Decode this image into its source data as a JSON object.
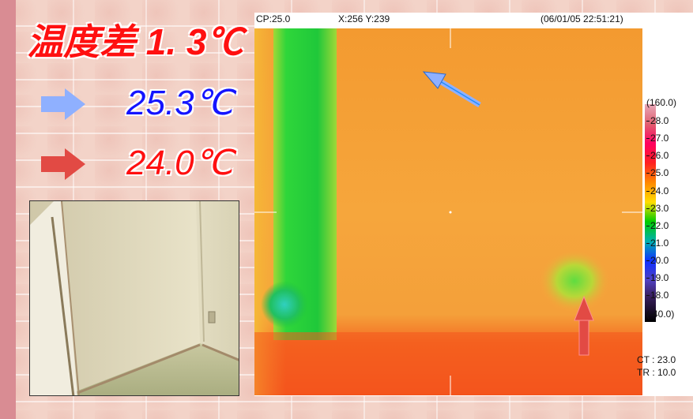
{
  "left_panel": {
    "title": "温度差 1. 3℃",
    "legend": [
      {
        "icon": "blue-arrow-icon",
        "color": "#8fb0ff",
        "value": "25.3℃",
        "text_color": "#1414ff"
      },
      {
        "icon": "red-arrow-icon",
        "color": "#e24a44",
        "value": "24.0℃",
        "text_color": "#ff1010"
      }
    ]
  },
  "thermo": {
    "cp": "CP:25.0",
    "xy": "X:256 Y:239",
    "timestamp": "(06/01/05 22:51:21)",
    "ct": "CT : 23.0",
    "tr": "TR : 10.0",
    "scale": [
      "(160.0)",
      "28.0",
      "27.0",
      "26.0",
      "25.0",
      "24.0",
      "23.0",
      "22.0",
      "21.0",
      "20.0",
      "19.0",
      "18.0",
      "(-40.0)"
    ]
  },
  "colors": {
    "background": "#f3d3c8",
    "left_bar": "#d98c93",
    "thermo_orange": "#f7a43a",
    "thermo_red": "#f4581e",
    "thermo_green": "#2fd63a"
  }
}
